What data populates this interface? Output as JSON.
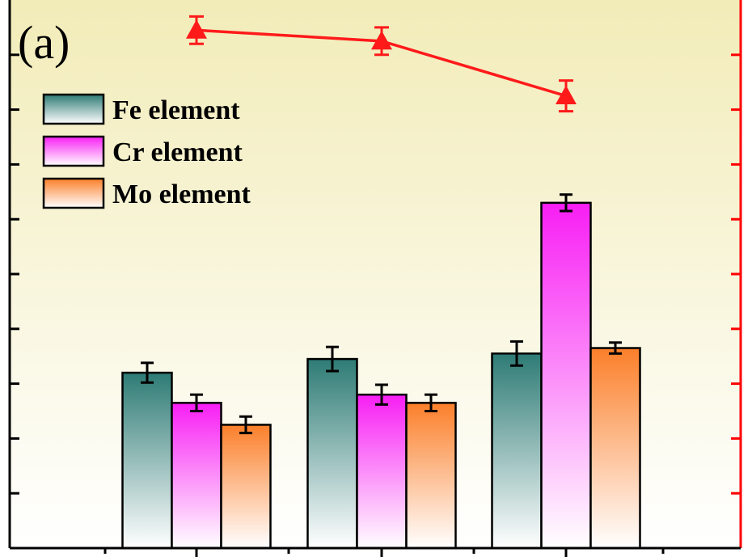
{
  "panel_label": "(a)",
  "chart_data": {
    "type": "bar",
    "categories": [
      "",
      "",
      ""
    ],
    "series": [
      {
        "name": "Fe element",
        "values": [
          3.2,
          3.45,
          3.55
        ],
        "errors": [
          0.18,
          0.22,
          0.22
        ],
        "color": "#2e7b75"
      },
      {
        "name": "Cr element",
        "values": [
          2.65,
          2.8,
          6.3
        ],
        "errors": [
          0.15,
          0.18,
          0.15
        ],
        "color": "#f81ef4"
      },
      {
        "name": "Mo element",
        "values": [
          2.25,
          2.65,
          3.65
        ],
        "errors": [
          0.15,
          0.15,
          0.1
        ],
        "color": "#fb7f2a"
      }
    ],
    "line_series": {
      "axis": "right",
      "color": "#ff1a1a",
      "marker": "triangle",
      "values": [
        9.45,
        9.25,
        8.25
      ],
      "errors": [
        0.25,
        0.25,
        0.28
      ]
    },
    "ylim": [
      0,
      10
    ],
    "ylim_right": [
      0,
      10
    ],
    "legend_position": "top-left",
    "background_gradient": [
      "#f2ecb8",
      "#ffffff"
    ],
    "axis_color_left": "#000000",
    "axis_color_right": "#ff0000"
  }
}
